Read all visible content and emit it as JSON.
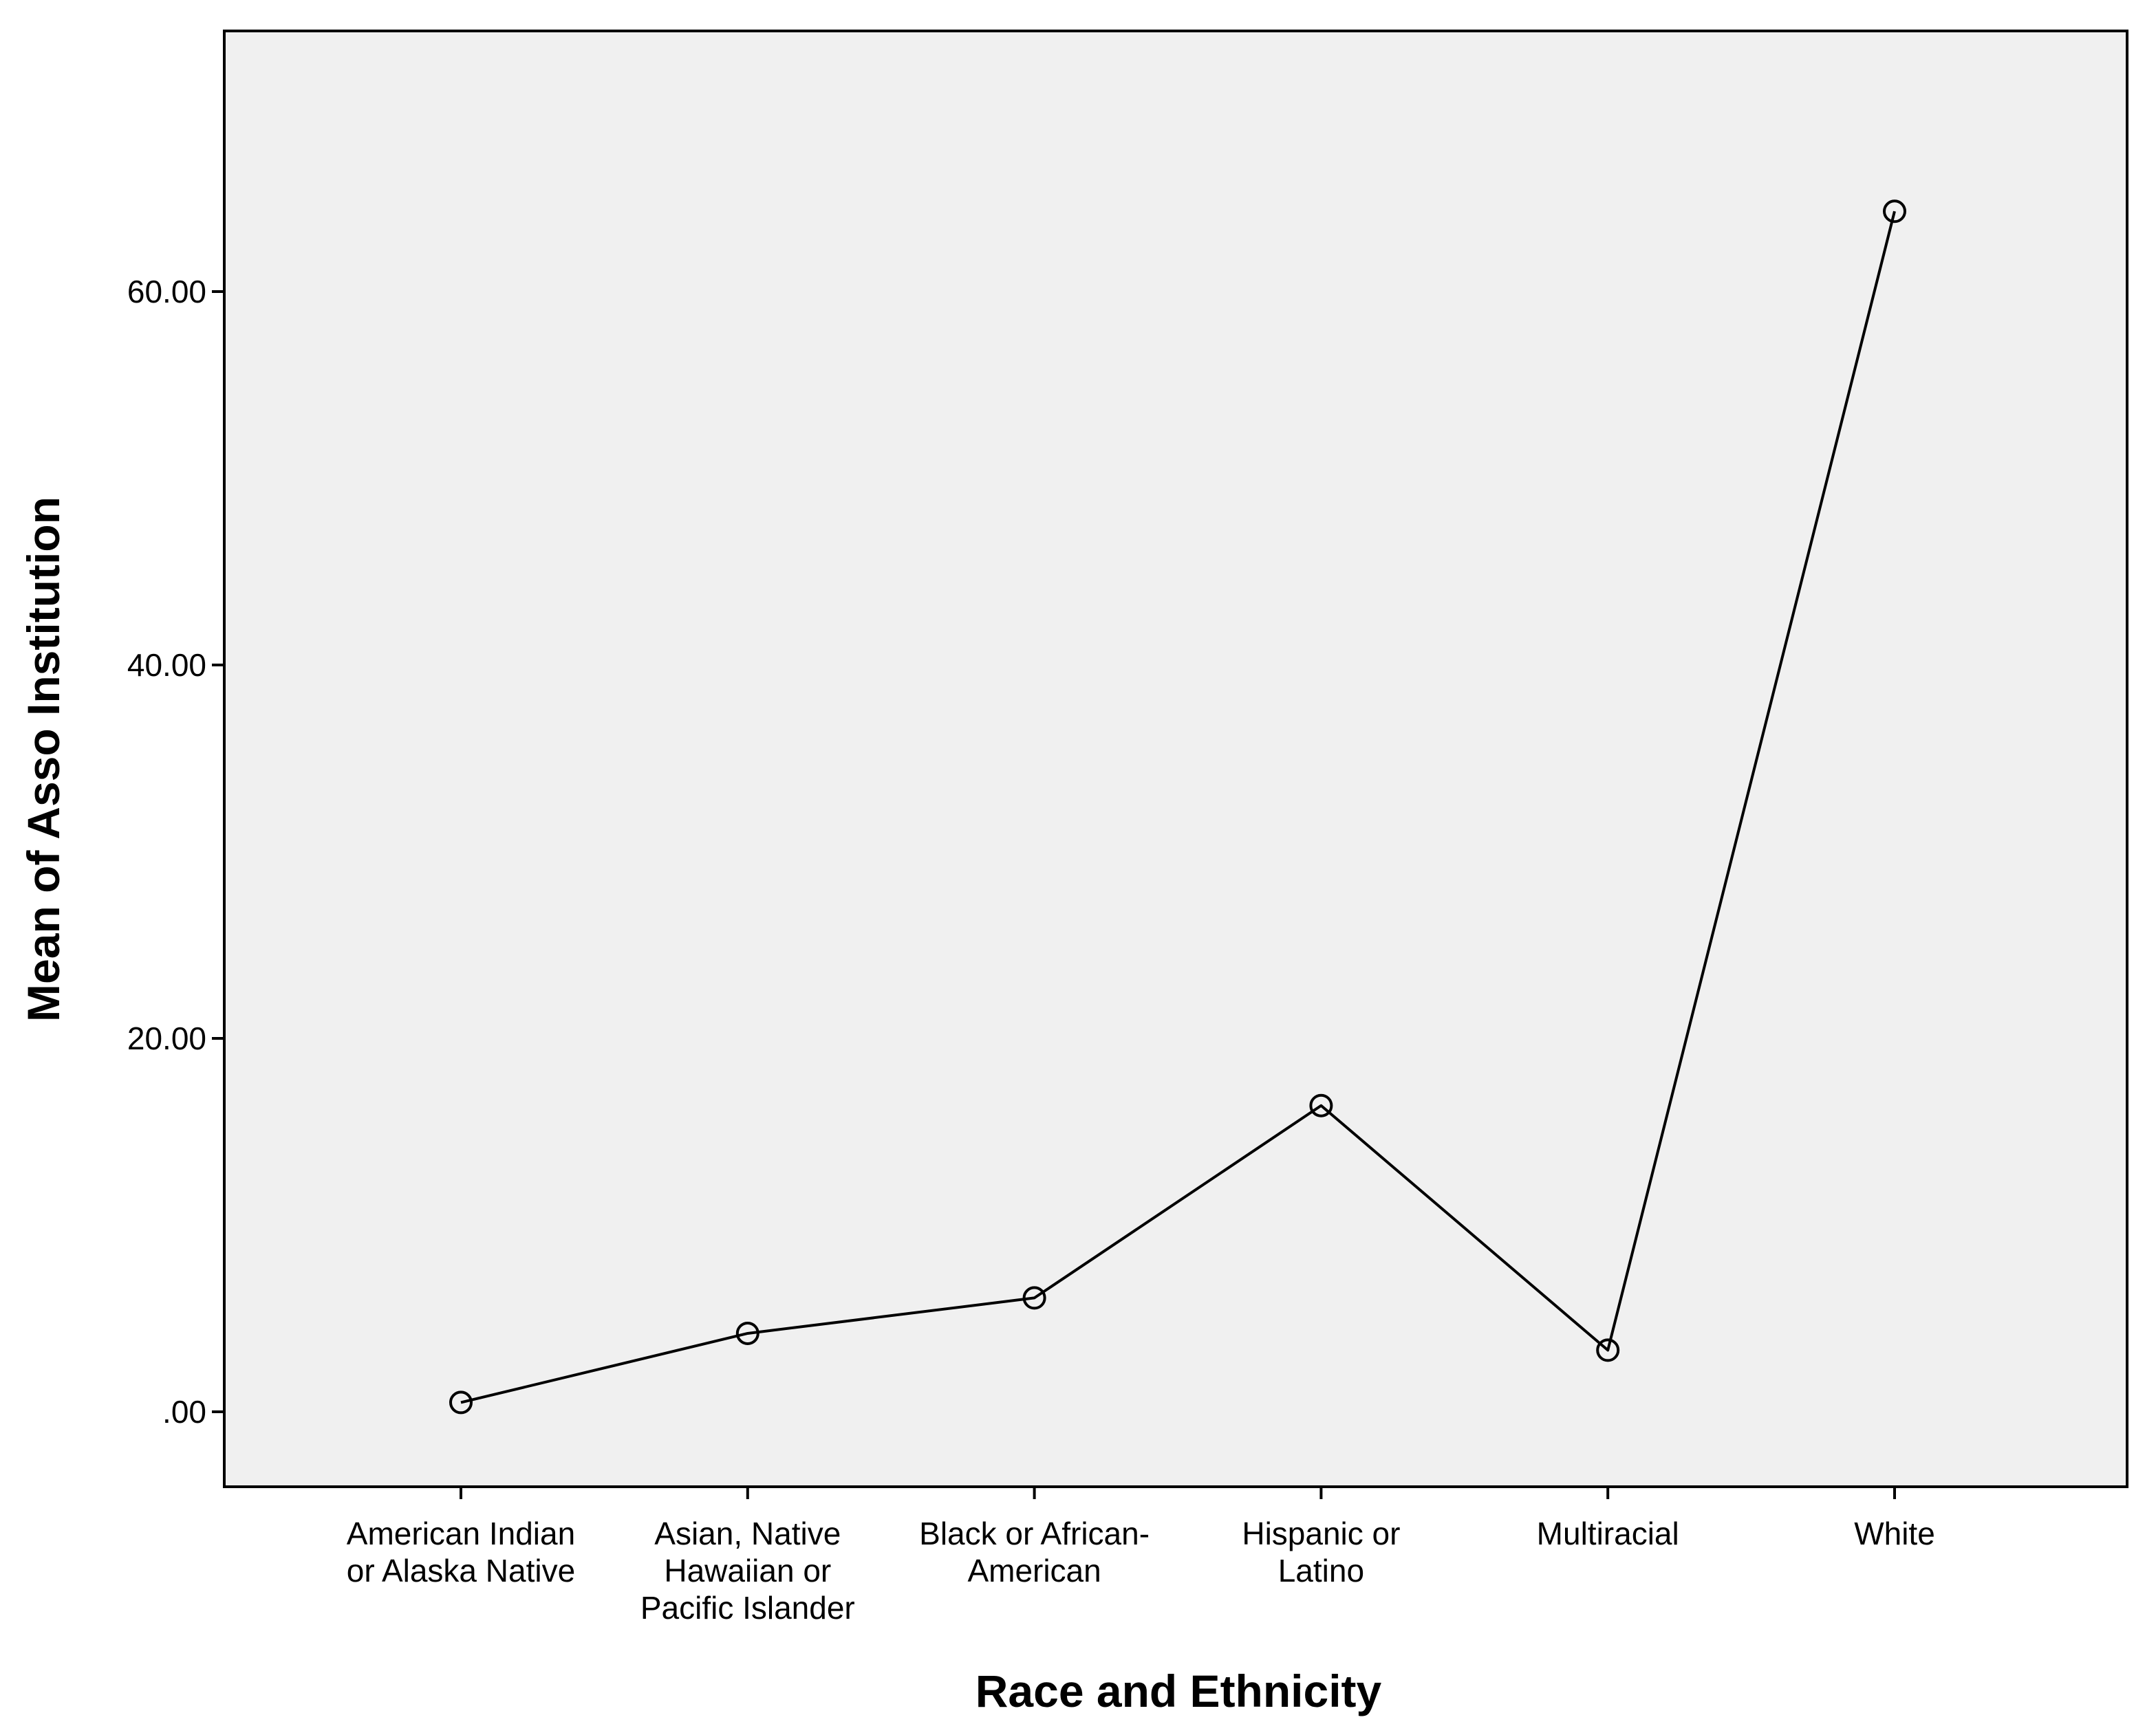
{
  "chart_data": {
    "type": "line",
    "title": "",
    "xlabel": "Race and Ethnicity",
    "ylabel": "Mean of Asso Institution",
    "categories": [
      [
        "American Indian",
        "or Alaska Native"
      ],
      [
        "Asian, Native",
        "Hawaiian or",
        "Pacific Islander"
      ],
      [
        "Black or African-",
        "American"
      ],
      [
        "Hispanic or",
        "Latino"
      ],
      [
        "Multiracial"
      ],
      [
        "White"
      ]
    ],
    "values": [
      0.5,
      4.2,
      6.1,
      16.4,
      3.3,
      64.3
    ],
    "y_ticks": [
      0,
      20,
      40,
      60
    ],
    "y_tick_labels": [
      ".00",
      "20.00",
      "40.00",
      "60.00"
    ],
    "ylim": [
      -4,
      74
    ],
    "grid": false,
    "legend": "none",
    "marker": "open-circle",
    "colors": {
      "plot_background": "#f0f0f0",
      "line": "#000000",
      "axis": "#000000"
    }
  }
}
